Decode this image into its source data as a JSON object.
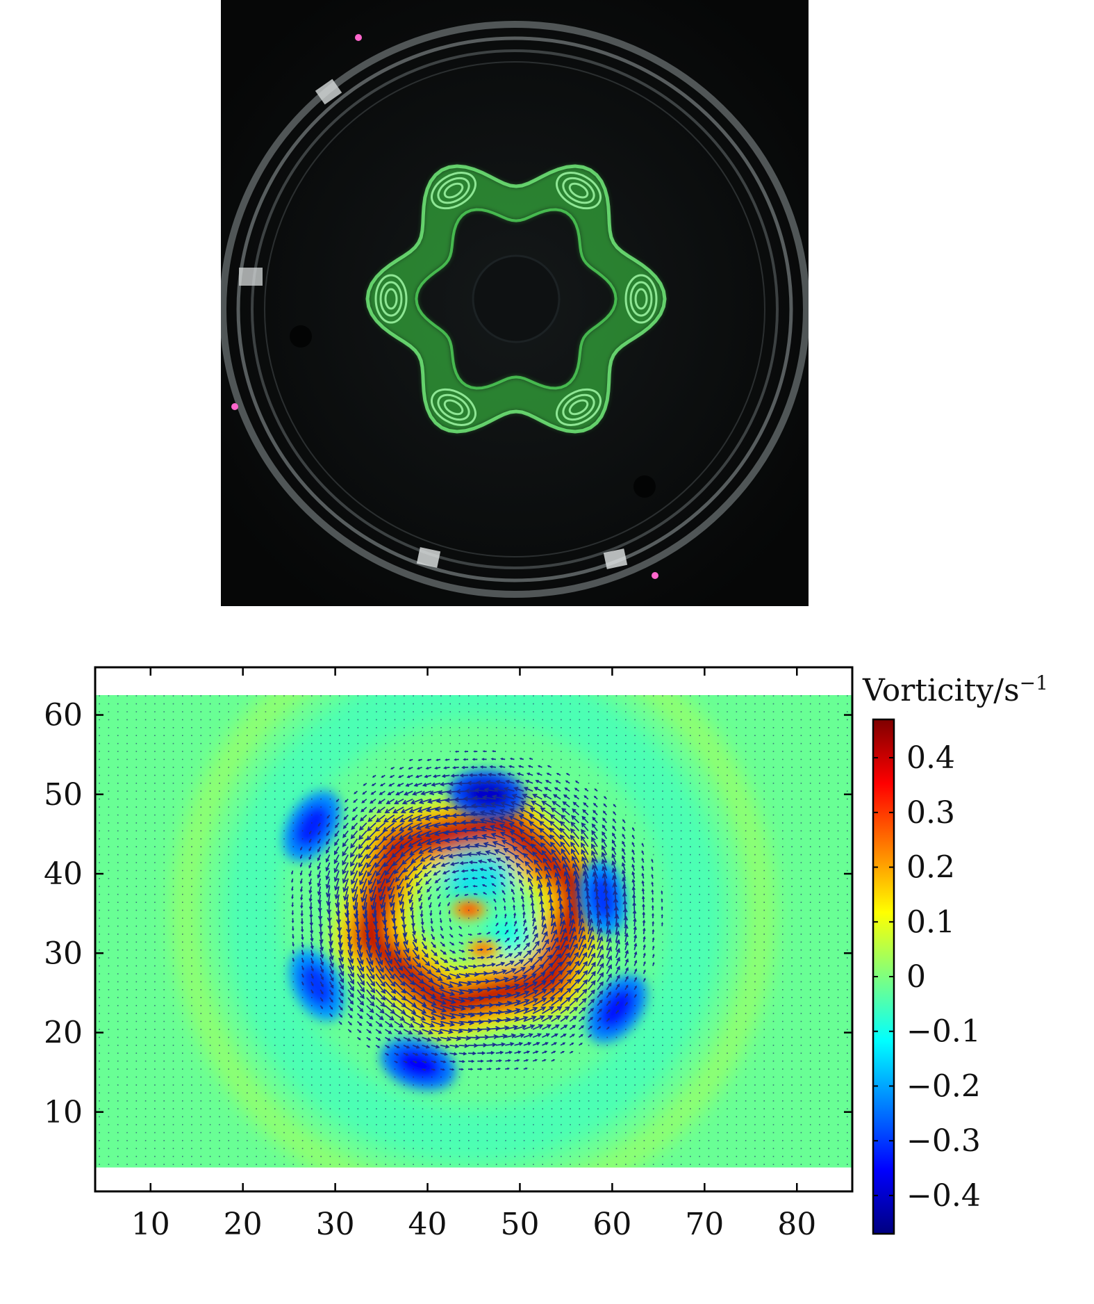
{
  "photo": {
    "description_icon": "flow-visualization-photo",
    "colors": {
      "background": "#0b0d0e",
      "dye": "#3fdc4a",
      "tank_rim": "#9aa3a6"
    }
  },
  "chart_data": {
    "type": "heatmap",
    "title": "",
    "xlabel": "",
    "ylabel": "",
    "xlim": [
      4,
      86
    ],
    "ylim": [
      0,
      66
    ],
    "data_extent": {
      "x": [
        4,
        86
      ],
      "y": [
        3,
        62.5
      ]
    },
    "x_ticks": [
      10,
      20,
      30,
      40,
      50,
      60,
      70,
      80
    ],
    "y_ticks": [
      10,
      20,
      30,
      40,
      50,
      60
    ],
    "center": [
      45,
      35
    ],
    "hexagon_radius": 12,
    "colorbar": {
      "title": "Vorticity/s",
      "title_superscript": "−1",
      "min": -0.47,
      "max": 0.47,
      "ticks": [
        0.4,
        0.3,
        0.2,
        0.1,
        0,
        -0.1,
        -0.2,
        -0.3,
        -0.4
      ],
      "tick_labels": [
        "0.4",
        "0.3",
        "0.2",
        "0.1",
        "0",
        "−0.1",
        "−0.2",
        "−0.3",
        "−0.4"
      ],
      "colormap": [
        "#00007f",
        "#0000ff",
        "#007fff",
        "#00ffff",
        "#7fff7f",
        "#ffff00",
        "#ff7f00",
        "#ff0000",
        "#7f0000"
      ]
    },
    "features": [
      {
        "kind": "positive-hexagonal-ring",
        "vorticity": 0.45
      },
      {
        "kind": "negative-vortex",
        "x": 46.5,
        "y": 50,
        "vorticity": -0.4
      },
      {
        "kind": "negative-vortex",
        "x": 27.5,
        "y": 46,
        "vorticity": -0.32
      },
      {
        "kind": "negative-vortex",
        "x": 28,
        "y": 26,
        "vorticity": -0.3
      },
      {
        "kind": "negative-vortex",
        "x": 39,
        "y": 16,
        "vorticity": -0.35
      },
      {
        "kind": "negative-vortex",
        "x": 60.5,
        "y": 23,
        "vorticity": -0.33
      },
      {
        "kind": "negative-vortex",
        "x": 59,
        "y": 37,
        "vorticity": -0.3
      },
      {
        "kind": "positive-spot",
        "x": 44.5,
        "y": 35.5,
        "vorticity": 0.35
      },
      {
        "kind": "positive-spot",
        "x": 46,
        "y": 30.5,
        "vorticity": 0.3
      }
    ],
    "background_value": -0.02,
    "velocity_vectors": "quiver field, dark blue arrows"
  }
}
